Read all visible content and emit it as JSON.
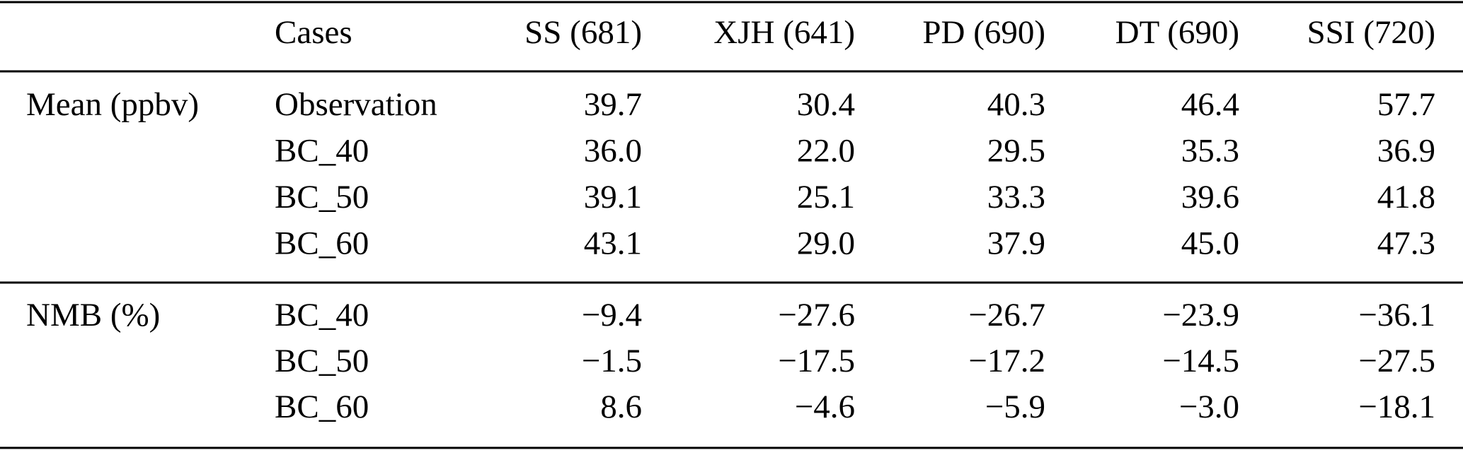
{
  "table": {
    "cases_header": "Cases",
    "columns": [
      "SS (681)",
      "XJH (641)",
      "PD (690)",
      "DT (690)",
      "SSI (720)"
    ],
    "groups": [
      {
        "label": "Mean (ppbv)",
        "rows": [
          {
            "case": "Observation",
            "values": [
              "39.7",
              "30.4",
              "40.3",
              "46.4",
              "57.7"
            ]
          },
          {
            "case": "BC_40",
            "values": [
              "36.0",
              "22.0",
              "29.5",
              "35.3",
              "36.9"
            ]
          },
          {
            "case": "BC_50",
            "values": [
              "39.1",
              "25.1",
              "33.3",
              "39.6",
              "41.8"
            ]
          },
          {
            "case": "BC_60",
            "values": [
              "43.1",
              "29.0",
              "37.9",
              "45.0",
              "47.3"
            ]
          }
        ]
      },
      {
        "label": "NMB (%)",
        "rows": [
          {
            "case": "BC_40",
            "values": [
              "−9.4",
              "−27.6",
              "−26.7",
              "−23.9",
              "−36.1"
            ]
          },
          {
            "case": "BC_50",
            "values": [
              "−1.5",
              "−17.5",
              "−17.2",
              "−14.5",
              "−27.5"
            ]
          },
          {
            "case": "BC_60",
            "values": [
              "8.6",
              "−4.6",
              "−5.9",
              "−3.0",
              "−18.1"
            ]
          }
        ]
      }
    ]
  }
}
